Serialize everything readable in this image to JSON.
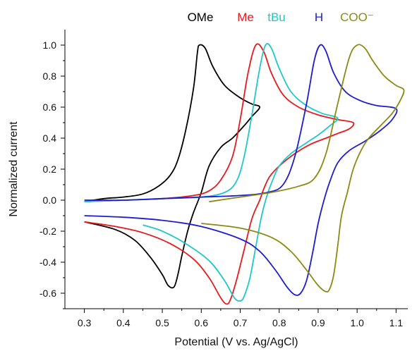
{
  "chart_data": {
    "type": "line",
    "title": "",
    "xlabel": "Potential (V vs. Ag/AgCl)",
    "ylabel": "Normalized current",
    "xlim": [
      0.25,
      1.13
    ],
    "ylim": [
      -0.7,
      1.1
    ],
    "x_ticks": [
      "0.3",
      "0.4",
      "0.5",
      "0.6",
      "0.7",
      "0.8",
      "0.9",
      "1.0",
      "1.1"
    ],
    "y_ticks": [
      "-0.6",
      "-0.4",
      "-0.2",
      "0.0",
      "0.2",
      "0.4",
      "0.6",
      "0.8",
      "1.0"
    ],
    "legend_placement": "top",
    "grid": false,
    "series": [
      {
        "name": "OMe",
        "color": "#000000",
        "points": [
          [
            0.3,
            -0.01
          ],
          [
            0.35,
            0.01
          ],
          [
            0.4,
            0.02
          ],
          [
            0.45,
            0.04
          ],
          [
            0.49,
            0.09
          ],
          [
            0.52,
            0.16
          ],
          [
            0.54,
            0.26
          ],
          [
            0.56,
            0.45
          ],
          [
            0.58,
            0.72
          ],
          [
            0.59,
            0.95
          ],
          [
            0.595,
            1.0
          ],
          [
            0.61,
            0.98
          ],
          [
            0.63,
            0.86
          ],
          [
            0.66,
            0.74
          ],
          [
            0.7,
            0.66
          ],
          [
            0.73,
            0.62
          ],
          [
            0.75,
            0.6
          ],
          [
            0.73,
            0.54
          ],
          [
            0.71,
            0.48
          ],
          [
            0.68,
            0.4
          ],
          [
            0.65,
            0.34
          ],
          [
            0.62,
            0.22
          ],
          [
            0.6,
            0.05
          ],
          [
            0.58,
            -0.08
          ],
          [
            0.565,
            -0.2
          ],
          [
            0.55,
            -0.36
          ],
          [
            0.54,
            -0.48
          ],
          [
            0.53,
            -0.56
          ],
          [
            0.515,
            -0.55
          ],
          [
            0.5,
            -0.48
          ],
          [
            0.47,
            -0.37
          ],
          [
            0.43,
            -0.26
          ],
          [
            0.38,
            -0.19
          ],
          [
            0.3,
            -0.14
          ]
        ]
      },
      {
        "name": "Me",
        "color": "#e8191d",
        "points": [
          [
            0.3,
            -0.01
          ],
          [
            0.4,
            0.0
          ],
          [
            0.5,
            0.01
          ],
          [
            0.58,
            0.03
          ],
          [
            0.62,
            0.06
          ],
          [
            0.65,
            0.13
          ],
          [
            0.68,
            0.28
          ],
          [
            0.7,
            0.52
          ],
          [
            0.72,
            0.82
          ],
          [
            0.74,
            1.0
          ],
          [
            0.76,
            0.96
          ],
          [
            0.78,
            0.82
          ],
          [
            0.81,
            0.68
          ],
          [
            0.85,
            0.6
          ],
          [
            0.9,
            0.55
          ],
          [
            0.95,
            0.52
          ],
          [
            0.99,
            0.5
          ],
          [
            0.98,
            0.46
          ],
          [
            0.95,
            0.43
          ],
          [
            0.92,
            0.4
          ],
          [
            0.88,
            0.36
          ],
          [
            0.84,
            0.3
          ],
          [
            0.8,
            0.22
          ],
          [
            0.775,
            0.15
          ],
          [
            0.76,
            0.07
          ],
          [
            0.75,
            0.0
          ],
          [
            0.73,
            -0.12
          ],
          [
            0.71,
            -0.32
          ],
          [
            0.69,
            -0.52
          ],
          [
            0.675,
            -0.64
          ],
          [
            0.665,
            -0.67
          ],
          [
            0.65,
            -0.63
          ],
          [
            0.62,
            -0.5
          ],
          [
            0.58,
            -0.38
          ],
          [
            0.52,
            -0.28
          ],
          [
            0.45,
            -0.21
          ],
          [
            0.38,
            -0.17
          ],
          [
            0.3,
            -0.14
          ]
        ]
      },
      {
        "name": "tBu",
        "color": "#1ec8c8",
        "points": [
          [
            0.3,
            -0.01
          ],
          [
            0.4,
            0.0
          ],
          [
            0.5,
            0.01
          ],
          [
            0.6,
            0.02
          ],
          [
            0.66,
            0.05
          ],
          [
            0.69,
            0.12
          ],
          [
            0.71,
            0.28
          ],
          [
            0.73,
            0.55
          ],
          [
            0.75,
            0.85
          ],
          [
            0.765,
            1.0
          ],
          [
            0.78,
            0.98
          ],
          [
            0.8,
            0.85
          ],
          [
            0.83,
            0.7
          ],
          [
            0.87,
            0.61
          ],
          [
            0.91,
            0.56
          ],
          [
            0.95,
            0.53
          ],
          [
            0.93,
            0.48
          ],
          [
            0.9,
            0.42
          ],
          [
            0.87,
            0.37
          ],
          [
            0.83,
            0.3
          ],
          [
            0.8,
            0.22
          ],
          [
            0.785,
            0.14
          ],
          [
            0.77,
            0.04
          ],
          [
            0.755,
            -0.1
          ],
          [
            0.74,
            -0.3
          ],
          [
            0.725,
            -0.5
          ],
          [
            0.71,
            -0.62
          ],
          [
            0.7,
            -0.65
          ],
          [
            0.685,
            -0.63
          ],
          [
            0.66,
            -0.52
          ],
          [
            0.62,
            -0.39
          ],
          [
            0.56,
            -0.28
          ],
          [
            0.5,
            -0.2
          ],
          [
            0.45,
            -0.16
          ]
        ]
      },
      {
        "name": "H",
        "color": "#1c1cd2",
        "points": [
          [
            0.3,
            0.0
          ],
          [
            0.4,
            0.0
          ],
          [
            0.5,
            0.01
          ],
          [
            0.6,
            0.02
          ],
          [
            0.7,
            0.03
          ],
          [
            0.77,
            0.05
          ],
          [
            0.81,
            0.1
          ],
          [
            0.84,
            0.28
          ],
          [
            0.87,
            0.62
          ],
          [
            0.89,
            0.9
          ],
          [
            0.905,
            1.0
          ],
          [
            0.92,
            0.96
          ],
          [
            0.94,
            0.82
          ],
          [
            0.97,
            0.7
          ],
          [
            1.01,
            0.64
          ],
          [
            1.05,
            0.61
          ],
          [
            1.1,
            0.59
          ],
          [
            1.09,
            0.52
          ],
          [
            1.06,
            0.45
          ],
          [
            1.02,
            0.38
          ],
          [
            0.98,
            0.32
          ],
          [
            0.95,
            0.24
          ],
          [
            0.93,
            0.12
          ],
          [
            0.915,
            0.0
          ],
          [
            0.9,
            -0.15
          ],
          [
            0.885,
            -0.35
          ],
          [
            0.87,
            -0.52
          ],
          [
            0.855,
            -0.6
          ],
          [
            0.84,
            -0.61
          ],
          [
            0.82,
            -0.56
          ],
          [
            0.79,
            -0.45
          ],
          [
            0.75,
            -0.33
          ],
          [
            0.7,
            -0.25
          ],
          [
            0.6,
            -0.17
          ],
          [
            0.5,
            -0.13
          ],
          [
            0.4,
            -0.11
          ],
          [
            0.3,
            -0.1
          ]
        ]
      },
      {
        "name": "COO⁻",
        "color": "#8a8a12",
        "points": [
          [
            0.62,
            -0.01
          ],
          [
            0.7,
            0.02
          ],
          [
            0.78,
            0.05
          ],
          [
            0.85,
            0.09
          ],
          [
            0.89,
            0.14
          ],
          [
            0.92,
            0.3
          ],
          [
            0.95,
            0.62
          ],
          [
            0.98,
            0.92
          ],
          [
            1.0,
            1.0
          ],
          [
            1.02,
            0.98
          ],
          [
            1.04,
            0.9
          ],
          [
            1.07,
            0.8
          ],
          [
            1.1,
            0.74
          ],
          [
            1.12,
            0.71
          ],
          [
            1.11,
            0.64
          ],
          [
            1.09,
            0.56
          ],
          [
            1.06,
            0.48
          ],
          [
            1.03,
            0.4
          ],
          [
            1.01,
            0.32
          ],
          [
            0.99,
            0.2
          ],
          [
            0.975,
            0.05
          ],
          [
            0.96,
            -0.1
          ],
          [
            0.95,
            -0.3
          ],
          [
            0.94,
            -0.48
          ],
          [
            0.93,
            -0.57
          ],
          [
            0.92,
            -0.59
          ],
          [
            0.9,
            -0.55
          ],
          [
            0.87,
            -0.45
          ],
          [
            0.83,
            -0.33
          ],
          [
            0.78,
            -0.24
          ],
          [
            0.7,
            -0.18
          ],
          [
            0.6,
            -0.15
          ]
        ]
      }
    ]
  }
}
